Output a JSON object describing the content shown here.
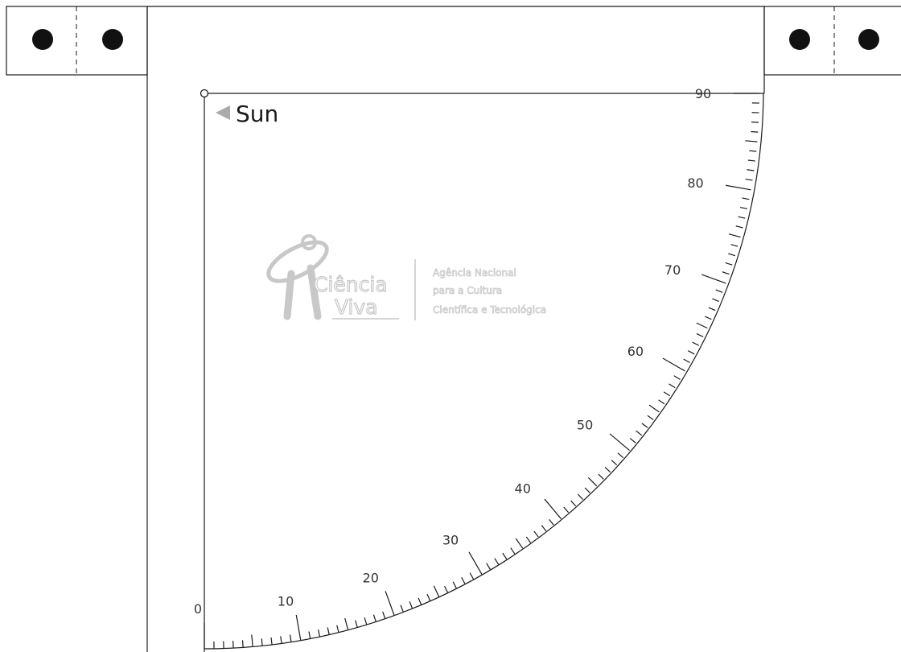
{
  "sight_label": "Sun",
  "scale": {
    "min": 0,
    "max": 90,
    "minor_step": 1,
    "mid_step": 5,
    "major_step": 10,
    "labels": [
      "0",
      "10",
      "20",
      "30",
      "40",
      "50",
      "60",
      "70",
      "80",
      "90"
    ]
  },
  "logo": {
    "name_line1": "Ciência",
    "name_line2": "Viva",
    "agency_line1": "Agência Nacional",
    "agency_line2": "para a Cultura",
    "agency_line3": "Científica e Tecnológica"
  },
  "colors": {
    "ink": "#1a1a1a",
    "scale_text": "#333333",
    "logo": "#c8c8c8",
    "arrow": "#aaaaaa",
    "punch_hole": "#111111"
  }
}
